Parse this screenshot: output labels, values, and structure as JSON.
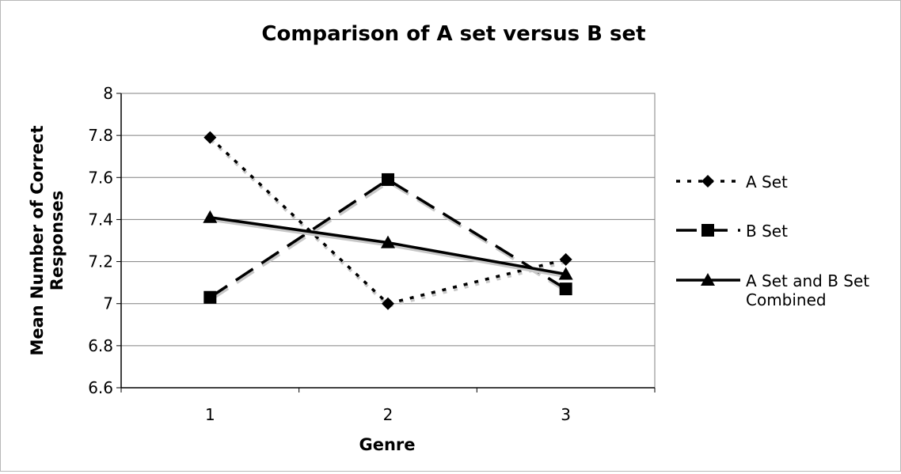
{
  "chart_data": {
    "type": "line",
    "title": "Comparison of A set versus B set",
    "xlabel": "Genre",
    "ylabel": [
      "Mean Number of Correct",
      "Responses"
    ],
    "categories": [
      "1",
      "2",
      "3"
    ],
    "ylim": [
      6.6,
      8
    ],
    "yticks": [
      "6.6",
      "6.8",
      "7",
      "7.2",
      "7.4",
      "7.6",
      "7.8",
      "8"
    ],
    "grid": "horizontal",
    "legend_position": "right",
    "series": [
      {
        "name": "A Set",
        "values": [
          7.79,
          7.0,
          7.21
        ],
        "dash": "dotted",
        "marker": "diamond",
        "color": "#000000"
      },
      {
        "name": "B Set",
        "values": [
          7.03,
          7.59,
          7.07
        ],
        "dash": "dashed",
        "marker": "square",
        "color": "#000000"
      },
      {
        "name": "A Set and B Set Combined",
        "values": [
          7.41,
          7.29,
          7.14
        ],
        "dash": "solid",
        "marker": "triangle",
        "color": "#000000"
      }
    ],
    "legend_lines": [
      [
        "A Set"
      ],
      [
        "B Set"
      ],
      [
        "A Set and B Set",
        "Combined"
      ]
    ]
  }
}
